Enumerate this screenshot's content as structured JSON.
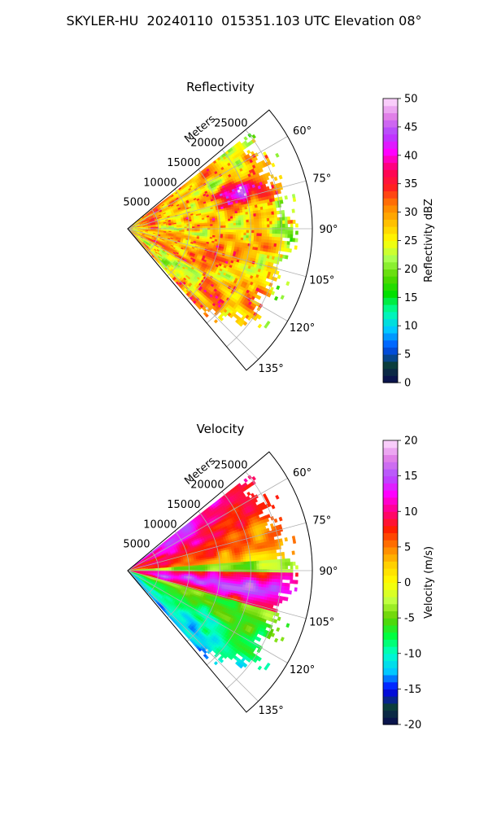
{
  "figure_title": "SKYLER-HU  20240110  015351.103 UTC Elevation 08°",
  "panels": [
    {
      "title": "Reflectivity",
      "radial_unit_label": "Meters",
      "radial_ticks": [
        "5000",
        "10000",
        "15000",
        "20000",
        "25000"
      ],
      "angle_ticks": [
        "60°",
        "75°",
        "90°",
        "105°",
        "120°",
        "135°"
      ],
      "colorbar": {
        "label": "Reflectivity dBZ",
        "min": 0,
        "max": 50,
        "ticks": [
          "0",
          "5",
          "10",
          "15",
          "20",
          "25",
          "30",
          "35",
          "40",
          "45",
          "50"
        ],
        "stops": [
          "#0a0a50",
          "#0b3d3d",
          "#0050ff",
          "#00c8ff",
          "#00ffaa",
          "#00e000",
          "#5ad700",
          "#aaff50",
          "#ffff00",
          "#ffc000",
          "#ff8000",
          "#ff2020",
          "#ff0060",
          "#ff00ff",
          "#b040ff",
          "#e080e8",
          "#ffe0ff"
        ]
      }
    },
    {
      "title": "Velocity",
      "radial_unit_label": "Meters",
      "radial_ticks": [
        "5000",
        "10000",
        "15000",
        "20000",
        "25000"
      ],
      "angle_ticks": [
        "60°",
        "75°",
        "90°",
        "105°",
        "120°",
        "135°"
      ],
      "colorbar": {
        "label": "Velocity (m/s)",
        "min": -20,
        "max": 20,
        "ticks": [
          "-20",
          "-15",
          "-10",
          "-5",
          "0",
          "5",
          "10",
          "15",
          "20"
        ],
        "stops": [
          "#0a0a50",
          "#0b3d3d",
          "#0000ff",
          "#00c8ff",
          "#00ffcc",
          "#00ff40",
          "#60d000",
          "#c0ff40",
          "#ffff00",
          "#ffd000",
          "#ff8000",
          "#ff2000",
          "#ff0080",
          "#ff00ff",
          "#b050ff",
          "#e080e8",
          "#ffe0ff"
        ]
      }
    }
  ],
  "chart_data": [
    {
      "type": "heatmap",
      "title": "Reflectivity",
      "theta_range_deg": [
        50,
        140
      ],
      "r_range_m": [
        0,
        30000
      ],
      "colorbar_label": "Reflectivity dBZ",
      "colorbar_range": [
        0,
        50
      ],
      "field_description": "Mostly 25–35 dBZ echoes across the sector, scattered 35–45 dBZ cores near 70°–80° at 15000–20000 m, 20 dBZ edges at outer range"
    },
    {
      "type": "heatmap",
      "title": "Velocity",
      "theta_range_deg": [
        50,
        140
      ],
      "r_range_m": [
        0,
        30000
      ],
      "colorbar_label": "Velocity (m/s)",
      "colorbar_range": [
        -20,
        20
      ],
      "field_description": "Positive 5–12 m/s at 60°–85°, near 0 to -5 m/s around 90°, 10–17 m/s band near 95°–105°, -5 to -12 m/s at 110°–135°"
    }
  ]
}
